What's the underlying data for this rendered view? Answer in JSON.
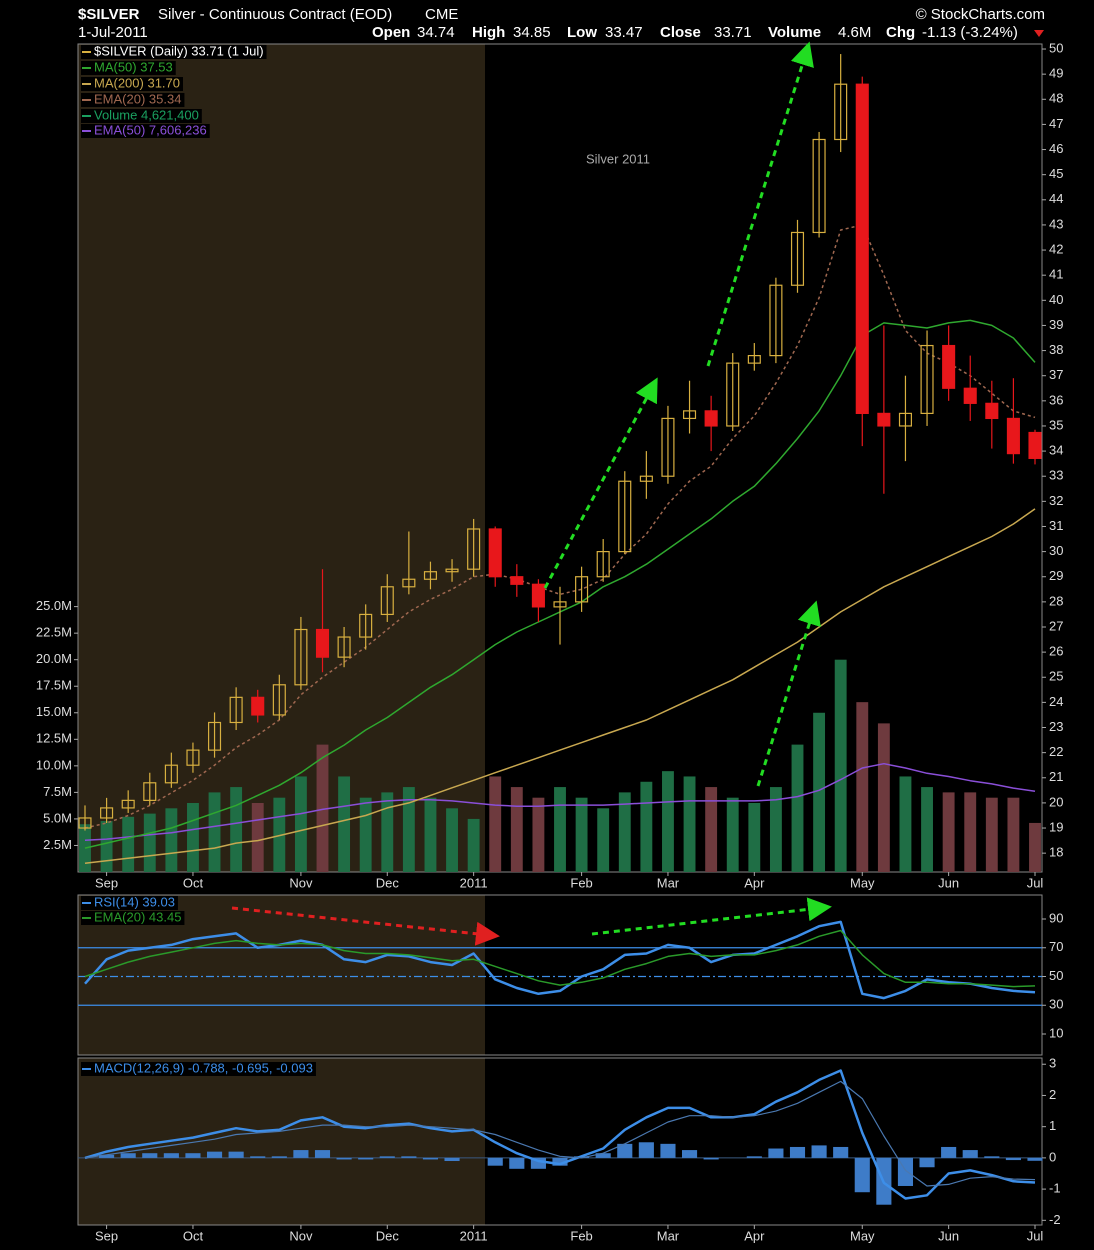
{
  "header": {
    "symbol": "$SILVER",
    "name": "Silver - Continuous Contract (EOD)",
    "exchange": "CME",
    "source": "© StockCharts.com",
    "date": "1-Jul-2011",
    "stats": [
      {
        "label": "Open",
        "value": "34.74"
      },
      {
        "label": "High",
        "value": "34.85"
      },
      {
        "label": "Low",
        "value": "33.47"
      },
      {
        "label": "Close",
        "value": "33.71"
      },
      {
        "label": "Volume",
        "value": "4.6M"
      },
      {
        "label": "Chg",
        "value": "-1.13 (-3.24%)"
      }
    ]
  },
  "chart_data": [
    {
      "type": "candlestick",
      "title": "$SILVER (Daily) 33.71 (1 Jul)",
      "annotation": "Silver 2011",
      "categories": [
        null,
        "Sep",
        null,
        null,
        null,
        "Oct",
        null,
        null,
        null,
        null,
        "Nov",
        null,
        null,
        null,
        "Dec",
        null,
        null,
        null,
        "2011",
        null,
        null,
        null,
        null,
        "Feb",
        null,
        null,
        null,
        "Mar",
        null,
        null,
        null,
        "Apr",
        null,
        null,
        null,
        null,
        "May",
        null,
        null,
        null,
        "Jun",
        null,
        null,
        null,
        "Jul"
      ],
      "open": [
        19.0,
        19.4,
        19.8,
        20.1,
        20.8,
        21.5,
        22.1,
        23.2,
        24.2,
        23.5,
        24.7,
        26.9,
        25.8,
        26.6,
        27.5,
        28.6,
        28.9,
        29.2,
        29.3,
        30.9,
        29.0,
        28.7,
        27.8,
        28.0,
        29.0,
        30.0,
        32.8,
        33.0,
        35.3,
        35.6,
        35.0,
        37.5,
        37.8,
        40.6,
        42.7,
        46.4,
        48.6,
        35.5,
        35.0,
        35.5,
        38.2,
        36.5,
        35.9,
        35.3,
        34.74
      ],
      "high": [
        19.9,
        20.2,
        20.5,
        21.2,
        22.0,
        22.4,
        23.6,
        24.6,
        24.5,
        25.1,
        27.4,
        29.3,
        27.0,
        27.9,
        29.1,
        30.8,
        29.6,
        29.7,
        31.3,
        31.0,
        29.5,
        28.9,
        28.6,
        29.4,
        30.5,
        33.2,
        34.0,
        35.8,
        36.8,
        36.2,
        37.9,
        38.3,
        40.9,
        43.2,
        46.7,
        49.8,
        48.9,
        39.0,
        37.0,
        38.8,
        39.0,
        37.8,
        36.8,
        36.9,
        34.85
      ],
      "low": [
        18.9,
        19.2,
        19.6,
        19.9,
        20.6,
        21.2,
        21.8,
        22.9,
        23.2,
        23.3,
        24.5,
        25.2,
        25.4,
        26.1,
        27.2,
        28.3,
        28.5,
        28.8,
        29.0,
        28.6,
        28.2,
        27.2,
        26.3,
        27.6,
        28.8,
        29.9,
        32.1,
        32.7,
        34.7,
        34.0,
        34.8,
        37.2,
        37.5,
        40.3,
        42.5,
        45.9,
        34.2,
        32.3,
        33.6,
        35.0,
        36.0,
        35.2,
        34.1,
        33.5,
        33.47
      ],
      "close": [
        19.4,
        19.8,
        20.1,
        20.8,
        21.5,
        22.1,
        23.2,
        24.2,
        23.5,
        24.7,
        26.9,
        25.8,
        26.6,
        27.5,
        28.6,
        28.9,
        29.2,
        29.3,
        30.9,
        29.0,
        28.7,
        27.8,
        28.0,
        29.0,
        30.0,
        32.8,
        33.0,
        35.3,
        35.6,
        35.0,
        37.5,
        37.8,
        40.6,
        42.7,
        46.4,
        48.6,
        35.5,
        35.0,
        35.5,
        38.2,
        36.5,
        35.9,
        35.3,
        33.9,
        33.71
      ],
      "up_color": "#d8b040",
      "down_color": "#e8171b",
      "ylim": [
        17.25,
        50.2
      ],
      "yticks": [
        18,
        19,
        20,
        21,
        22,
        23,
        24,
        25,
        26,
        27,
        28,
        29,
        30,
        31,
        32,
        33,
        34,
        35,
        36,
        37,
        38,
        39,
        40,
        41,
        42,
        43,
        44,
        45,
        46,
        47,
        48,
        49,
        50
      ],
      "series": [
        {
          "name": "MA(50) 37.53",
          "color": "#2fa82f",
          "values": [
            18.2,
            18.4,
            18.6,
            18.8,
            19.0,
            19.3,
            19.6,
            19.9,
            20.3,
            20.7,
            21.2,
            21.8,
            22.3,
            22.9,
            23.4,
            24.0,
            24.6,
            25.1,
            25.7,
            26.3,
            26.8,
            27.2,
            27.6,
            28.0,
            28.6,
            29.0,
            29.5,
            30.1,
            30.7,
            31.3,
            32.0,
            32.6,
            33.5,
            34.5,
            35.6,
            37.0,
            38.6,
            39.1,
            39.0,
            38.9,
            39.1,
            39.2,
            39.0,
            38.5,
            37.53
          ]
        },
        {
          "name": "MA(200) 31.70",
          "color": "#c8a850",
          "values": [
            17.6,
            17.7,
            17.8,
            17.9,
            18.0,
            18.1,
            18.2,
            18.4,
            18.5,
            18.7,
            18.9,
            19.1,
            19.3,
            19.5,
            19.8,
            20.0,
            20.3,
            20.6,
            20.9,
            21.2,
            21.5,
            21.8,
            22.1,
            22.4,
            22.7,
            23.0,
            23.3,
            23.7,
            24.1,
            24.5,
            24.9,
            25.4,
            25.9,
            26.4,
            27.0,
            27.6,
            28.1,
            28.6,
            29.0,
            29.4,
            29.8,
            30.2,
            30.6,
            31.1,
            31.7
          ]
        },
        {
          "name": "EMA(20) 35.34",
          "color": "#a06850",
          "dashed": true,
          "values": [
            19.0,
            19.2,
            19.5,
            19.9,
            20.4,
            20.9,
            21.5,
            22.2,
            22.7,
            23.3,
            24.3,
            25.0,
            25.6,
            26.2,
            26.9,
            27.6,
            28.1,
            28.5,
            29.0,
            29.1,
            28.9,
            28.6,
            28.3,
            28.5,
            28.9,
            29.9,
            30.7,
            31.9,
            32.8,
            33.4,
            34.5,
            35.4,
            36.7,
            38.2,
            40.1,
            42.8,
            43.0,
            41.0,
            38.8,
            37.9,
            37.5,
            37.0,
            36.3,
            35.6,
            35.34
          ]
        }
      ],
      "volume": {
        "name": "Volume 4,621,400",
        "legend_color": "#1aa060",
        "up_color": "#1f6e45",
        "down_color": "#6e3a3e",
        "values": [
          4500000,
          4800000,
          5200000,
          5500000,
          6000000,
          6500000,
          7500000,
          8000000,
          6500000,
          7000000,
          9000000,
          12000000,
          9000000,
          7000000,
          7500000,
          8000000,
          7000000,
          6000000,
          5000000,
          9000000,
          8000000,
          7000000,
          8000000,
          7000000,
          6000000,
          7500000,
          8500000,
          9500000,
          9000000,
          8000000,
          7000000,
          6500000,
          8000000,
          12000000,
          15000000,
          20000000,
          16000000,
          14000000,
          9000000,
          8000000,
          7500000,
          7500000,
          7000000,
          7000000,
          4621400
        ],
        "ylim": [
          0,
          78000000
        ],
        "yticks": [
          {
            "value": 2500000,
            "label": "2.5M"
          },
          {
            "value": 5000000,
            "label": "5.0M"
          },
          {
            "value": 7500000,
            "label": "7.5M"
          },
          {
            "value": 10000000,
            "label": "10.0M"
          },
          {
            "value": 12500000,
            "label": "12.5M"
          },
          {
            "value": 15000000,
            "label": "15.0M"
          },
          {
            "value": 17500000,
            "label": "17.5M"
          },
          {
            "value": 20000000,
            "label": "20.0M"
          },
          {
            "value": 22500000,
            "label": "22.5M"
          },
          {
            "value": 25000000,
            "label": "25.0M"
          }
        ],
        "ema": {
          "name": "EMA(50) 7,606,236",
          "color": "#8a4fd8",
          "values": [
            3000000,
            3100000,
            3300000,
            3500000,
            3700000,
            4000000,
            4300000,
            4600000,
            4900000,
            5200000,
            5500000,
            5900000,
            6200000,
            6500000,
            6700000,
            6800000,
            6800000,
            6700000,
            6500000,
            6300000,
            6200000,
            6200000,
            6300000,
            6300000,
            6300000,
            6400000,
            6500000,
            6600000,
            6700000,
            6700000,
            6700000,
            6700000,
            6800000,
            7100000,
            7700000,
            8700000,
            9800000,
            10200000,
            9800000,
            9300000,
            9000000,
            8600000,
            8300000,
            7900000,
            7606236
          ]
        }
      }
    },
    {
      "type": "line",
      "series": [
        {
          "name": "RSI(14) 39.03",
          "color": "#3d8ee8",
          "values": [
            45,
            62,
            68,
            70,
            72,
            76,
            78,
            80,
            70,
            72,
            75,
            72,
            62,
            60,
            65,
            64,
            60,
            58,
            66,
            48,
            42,
            38,
            40,
            50,
            55,
            65,
            66,
            72,
            70,
            60,
            65,
            66,
            72,
            78,
            85,
            88,
            38,
            35,
            40,
            48,
            46,
            45,
            42,
            40,
            39.03
          ]
        },
        {
          "name": "EMA(20) 43.45",
          "color": "#2a9a2a",
          "values": [
            50,
            55,
            60,
            64,
            67,
            70,
            73,
            75,
            73,
            72,
            73,
            72,
            68,
            66,
            66,
            65,
            63,
            61,
            62,
            57,
            52,
            47,
            44,
            46,
            49,
            55,
            59,
            64,
            66,
            64,
            65,
            65,
            68,
            72,
            78,
            82,
            65,
            52,
            46,
            46,
            45,
            45,
            44,
            43,
            43.45
          ]
        }
      ],
      "ylim": [
        -4.6,
        106.7
      ],
      "yticks": [
        10,
        30,
        50,
        70,
        90
      ],
      "lines": [
        30,
        50,
        70
      ],
      "line_color": "#3d8ee8"
    },
    {
      "type": "macd",
      "title": "MACD(12,26,9) -0.788, -0.695, -0.093",
      "categories": [
        null,
        "Sep",
        null,
        null,
        null,
        "Oct",
        null,
        null,
        null,
        null,
        "Nov",
        null,
        null,
        null,
        "Dec",
        null,
        null,
        null,
        "2011",
        null,
        null,
        null,
        null,
        "Feb",
        null,
        null,
        null,
        "Mar",
        null,
        null,
        null,
        "Apr",
        null,
        null,
        null,
        null,
        "May",
        null,
        null,
        null,
        "Jun",
        null,
        null,
        null,
        "Jul"
      ],
      "series": [
        {
          "color": "#3d8ee8",
          "values": [
            0,
            0.2,
            0.35,
            0.45,
            0.55,
            0.65,
            0.8,
            0.95,
            0.85,
            0.9,
            1.2,
            1.3,
            1.0,
            0.95,
            1.05,
            1.1,
            0.95,
            0.85,
            0.9,
            0.5,
            0.15,
            -0.1,
            -0.2,
            0.05,
            0.3,
            0.9,
            1.3,
            1.6,
            1.6,
            1.3,
            1.3,
            1.4,
            1.8,
            2.1,
            2.5,
            2.8,
            0.8,
            -0.8,
            -1.3,
            -1.2,
            -0.5,
            -0.4,
            -0.55,
            -0.75,
            -0.788
          ]
        },
        {
          "color": "#4a78b0",
          "values": [
            0,
            0.1,
            0.2,
            0.3,
            0.4,
            0.5,
            0.6,
            0.75,
            0.8,
            0.85,
            0.95,
            1.05,
            1.05,
            1.0,
            1.0,
            1.05,
            1.0,
            0.95,
            0.9,
            0.75,
            0.5,
            0.25,
            0.05,
            0.0,
            0.15,
            0.45,
            0.8,
            1.15,
            1.35,
            1.35,
            1.3,
            1.35,
            1.5,
            1.75,
            2.1,
            2.45,
            1.9,
            0.7,
            -0.4,
            -0.9,
            -0.85,
            -0.65,
            -0.6,
            -0.68,
            -0.695
          ]
        }
      ],
      "histogram": {
        "color": "#3e7cc8",
        "values": [
          0,
          0.1,
          0.15,
          0.15,
          0.15,
          0.15,
          0.2,
          0.2,
          0.05,
          0.05,
          0.25,
          0.25,
          -0.05,
          -0.05,
          0.05,
          0.05,
          -0.05,
          -0.1,
          0,
          -0.25,
          -0.35,
          -0.35,
          -0.25,
          0.05,
          0.15,
          0.45,
          0.5,
          0.45,
          0.25,
          -0.05,
          0,
          0.05,
          0.3,
          0.35,
          0.4,
          0.35,
          -1.1,
          -1.5,
          -0.9,
          -0.3,
          0.35,
          0.25,
          0.05,
          -0.07,
          -0.093
        ]
      },
      "ylim": [
        -2.15,
        3.2
      ],
      "yticks": [
        -2,
        -1,
        0,
        1,
        2,
        3
      ]
    }
  ]
}
